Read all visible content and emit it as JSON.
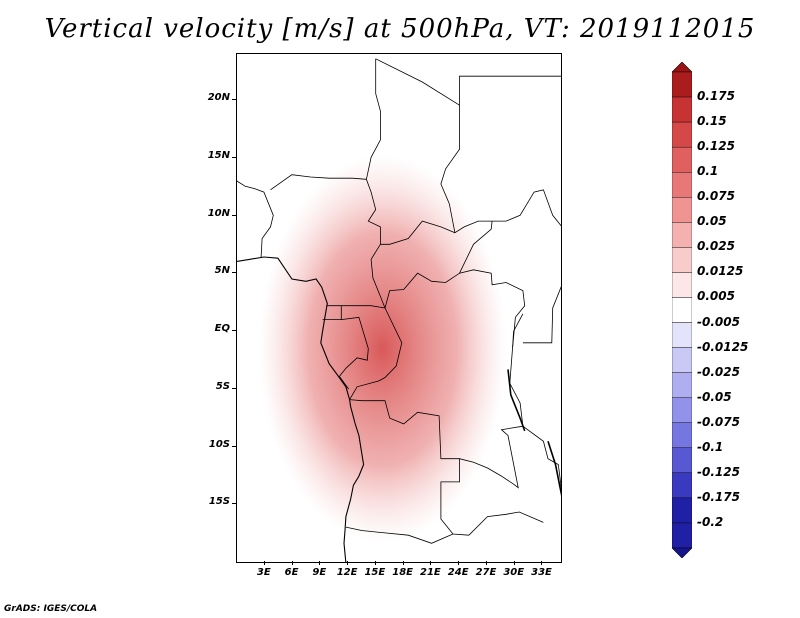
{
  "title": "Vertical velocity [m/s] at 500hPa, VT: 2019112015",
  "footer": "GrADS: IGES/COLA",
  "map": {
    "lon_range": [
      0,
      35
    ],
    "lat_range": [
      -20,
      24
    ],
    "lat_ticks": [
      {
        "label": "20N",
        "value": 20
      },
      {
        "label": "15N",
        "value": 15
      },
      {
        "label": "10N",
        "value": 10
      },
      {
        "label": "5N",
        "value": 5
      },
      {
        "label": "EQ",
        "value": 0
      },
      {
        "label": "5S",
        "value": -5
      },
      {
        "label": "10S",
        "value": -10
      },
      {
        "label": "15S",
        "value": -15
      }
    ],
    "lon_ticks": [
      {
        "label": "3E",
        "value": 3
      },
      {
        "label": "6E",
        "value": 6
      },
      {
        "label": "9E",
        "value": 9
      },
      {
        "label": "12E",
        "value": 12
      },
      {
        "label": "15E",
        "value": 15
      },
      {
        "label": "18E",
        "value": 18
      },
      {
        "label": "21E",
        "value": 21
      },
      {
        "label": "24E",
        "value": 24
      },
      {
        "label": "27E",
        "value": 27
      },
      {
        "label": "30E",
        "value": 30
      },
      {
        "label": "33E",
        "value": 33
      }
    ]
  },
  "colorbar": {
    "levels": [
      {
        "label": "0.175",
        "color": "#ab1d1d"
      },
      {
        "label": "0.15",
        "color": "#c73232"
      },
      {
        "label": "0.125",
        "color": "#d64848"
      },
      {
        "label": "0.1",
        "color": "#e06060"
      },
      {
        "label": "0.075",
        "color": "#e87878"
      },
      {
        "label": "0.05",
        "color": "#ef9393"
      },
      {
        "label": "0.025",
        "color": "#f5b0b0"
      },
      {
        "label": "0.0125",
        "color": "#f9cccc"
      },
      {
        "label": "0.005",
        "color": "#fde6e6"
      },
      {
        "label": "-0.005",
        "color": "#ffffff"
      },
      {
        "label": "-0.0125",
        "color": "#e3e3fb"
      },
      {
        "label": "-0.025",
        "color": "#c9c9f5"
      },
      {
        "label": "-0.05",
        "color": "#aeaef0"
      },
      {
        "label": "-0.075",
        "color": "#9292ea"
      },
      {
        "label": "-0.1",
        "color": "#7676e0"
      },
      {
        "label": "-0.125",
        "color": "#5858d3"
      },
      {
        "label": "-0.175",
        "color": "#3a3ac0"
      },
      {
        "label": "-0.2",
        "color": "#2020a6"
      }
    ],
    "top_color": "#9e1414",
    "bottom_color": "#15158f"
  },
  "colors": {
    "negative": "#6f6fe4",
    "positive": "#e25a5a",
    "neutral": "#ffffff"
  }
}
